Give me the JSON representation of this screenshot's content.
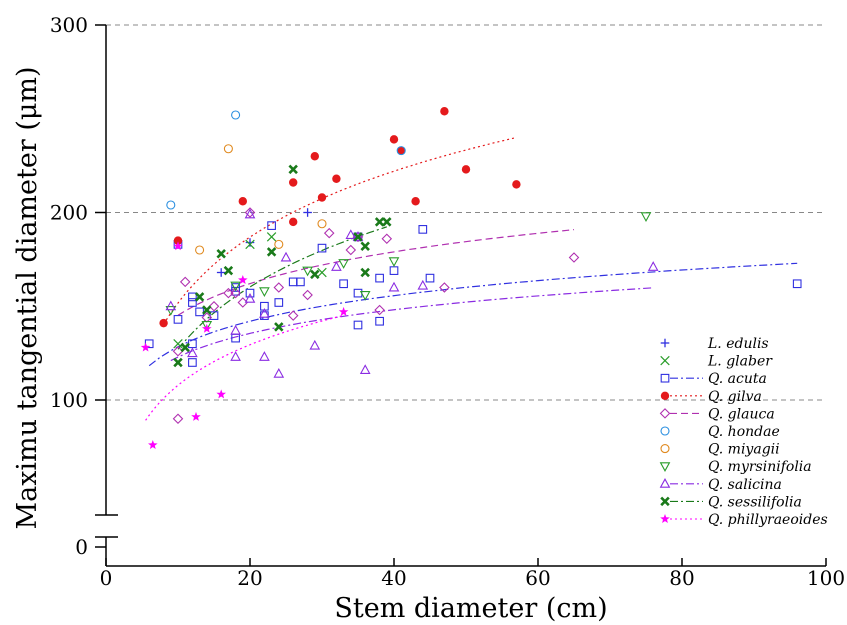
{
  "chart_data": {
    "type": "scatter",
    "title": "",
    "xlabel": "Stem diameter (cm)",
    "ylabel": "Maximu tangential diameter (μm)",
    "xlim": [
      0,
      100
    ],
    "ylim": [
      0,
      300
    ],
    "y_axis_break": [
      40,
      60
    ],
    "x_ticks": [
      0,
      20,
      40,
      60,
      80,
      100
    ],
    "x_tick_labels": [
      "0",
      "20",
      "40",
      "60",
      "80",
      "100"
    ],
    "y_ticks": [
      0,
      100,
      200,
      300
    ],
    "y_tick_labels": [
      "0",
      "100",
      "200",
      "300"
    ],
    "grid": "dashed horizontal lines at 100, 200, 300",
    "legend_position": "bottom-right",
    "series": [
      {
        "name": "L. edulis",
        "color": "#3030e0",
        "marker": "plus",
        "line": null,
        "points": [
          [
            16,
            168
          ],
          [
            20,
            184
          ],
          [
            28,
            200
          ]
        ]
      },
      {
        "name": "L. glaber",
        "color": "#2a9d2a",
        "marker": "x",
        "line": null,
        "points": [
          [
            10,
            130
          ],
          [
            20,
            183
          ],
          [
            23,
            187
          ],
          [
            30,
            168
          ]
        ]
      },
      {
        "name": "Q. acuta",
        "color": "#3030e0",
        "marker": "square-open",
        "line": "dashdot",
        "fit": {
          "a": 83.0,
          "b": 19.7
        },
        "points": [
          [
            6,
            130
          ],
          [
            10,
            143
          ],
          [
            10,
            183
          ],
          [
            12,
            120
          ],
          [
            12,
            130
          ],
          [
            12,
            152
          ],
          [
            12,
            155
          ],
          [
            13,
            147
          ],
          [
            15,
            145
          ],
          [
            18,
            133
          ],
          [
            18,
            158
          ],
          [
            18,
            160
          ],
          [
            20,
            157
          ],
          [
            22,
            145
          ],
          [
            22,
            150
          ],
          [
            23,
            193
          ],
          [
            24,
            152
          ],
          [
            26,
            163
          ],
          [
            27,
            163
          ],
          [
            30,
            181
          ],
          [
            33,
            162
          ],
          [
            35,
            140
          ],
          [
            35,
            157
          ],
          [
            35,
            187
          ],
          [
            38,
            142
          ],
          [
            38,
            165
          ],
          [
            40,
            169
          ],
          [
            44,
            191
          ],
          [
            45,
            165
          ],
          [
            96,
            162
          ]
        ]
      },
      {
        "name": "Q. gilva",
        "color": "#e41a1c",
        "marker": "circle-filled",
        "line": "dotted",
        "fit": {
          "a": 35.0,
          "b": 50.7
        },
        "points": [
          [
            8,
            141
          ],
          [
            10,
            185
          ],
          [
            19,
            206
          ],
          [
            26,
            216
          ],
          [
            26,
            195
          ],
          [
            29,
            230
          ],
          [
            30,
            208
          ],
          [
            32,
            218
          ],
          [
            40,
            239
          ],
          [
            41,
            233
          ],
          [
            43,
            206
          ],
          [
            47,
            254
          ],
          [
            50,
            223
          ],
          [
            57,
            215
          ]
        ]
      },
      {
        "name": "Q. glauca",
        "color": "#b030b0",
        "marker": "diamond-open",
        "line": "dashed",
        "fit": {
          "a": 89.0,
          "b": 24.4
        },
        "points": [
          [
            10,
            90
          ],
          [
            10,
            126
          ],
          [
            11,
            163
          ],
          [
            14,
            144
          ],
          [
            15,
            150
          ],
          [
            17,
            157
          ],
          [
            18,
            157
          ],
          [
            19,
            152
          ],
          [
            20,
            200
          ],
          [
            24,
            160
          ],
          [
            26,
            145
          ],
          [
            28,
            156
          ],
          [
            31,
            189
          ],
          [
            34,
            180
          ],
          [
            35,
            187
          ],
          [
            38,
            148
          ],
          [
            39,
            186
          ],
          [
            47,
            160
          ],
          [
            65,
            176
          ]
        ]
      },
      {
        "name": "Q. hondae",
        "color": "#2a8fe0",
        "marker": "circle-open",
        "line": null,
        "points": [
          [
            9,
            204
          ],
          [
            18,
            252
          ],
          [
            41,
            233
          ]
        ]
      },
      {
        "name": "Q. miyagii",
        "color": "#e08a20",
        "marker": "circle-open",
        "line": null,
        "points": [
          [
            13,
            180
          ],
          [
            17,
            234
          ],
          [
            24,
            183
          ],
          [
            30,
            194
          ]
        ]
      },
      {
        "name": "Q. myrsinifolia",
        "color": "#2a9d2a",
        "marker": "triangle-down-open",
        "line": null,
        "points": [
          [
            9,
            148
          ],
          [
            14,
            140
          ],
          [
            18,
            161
          ],
          [
            22,
            158
          ],
          [
            28,
            169
          ],
          [
            33,
            173
          ],
          [
            36,
            156
          ],
          [
            40,
            174
          ],
          [
            75,
            198
          ]
        ]
      },
      {
        "name": "Q. salicina",
        "color": "#8a2be2",
        "marker": "triangle-up-open",
        "line": "dashdot",
        "fit": {
          "a": 81.0,
          "b": 18.2
        },
        "points": [
          [
            9,
            150
          ],
          [
            12,
            125
          ],
          [
            18,
            123
          ],
          [
            18,
            137
          ],
          [
            20,
            154
          ],
          [
            20,
            199
          ],
          [
            22,
            123
          ],
          [
            22,
            146
          ],
          [
            24,
            114
          ],
          [
            25,
            176
          ],
          [
            29,
            129
          ],
          [
            32,
            171
          ],
          [
            34,
            188
          ],
          [
            35,
            187
          ],
          [
            36,
            116
          ],
          [
            40,
            160
          ],
          [
            44,
            161
          ],
          [
            76,
            171
          ]
        ]
      },
      {
        "name": "Q. sessilifolia",
        "color": "#1a7a1a",
        "marker": "x-bold",
        "line": "dashdot",
        "fit": {
          "a": 16.5,
          "b": 48.0
        },
        "points": [
          [
            10,
            120
          ],
          [
            11,
            128
          ],
          [
            13,
            155
          ],
          [
            14,
            148
          ],
          [
            16,
            178
          ],
          [
            17,
            169
          ],
          [
            23,
            179
          ],
          [
            24,
            139
          ],
          [
            26,
            223
          ],
          [
            29,
            167
          ],
          [
            35,
            187
          ],
          [
            36,
            182
          ],
          [
            36,
            168
          ],
          [
            38,
            195
          ],
          [
            39,
            195
          ]
        ]
      },
      {
        "name": "Q. phillyraeoides",
        "color": "#ff00ff",
        "marker": "star",
        "line": "dotted",
        "fit": {
          "a": 36.0,
          "b": 31.2
        },
        "points": [
          [
            5.5,
            128
          ],
          [
            6.5,
            76
          ],
          [
            10,
            182
          ],
          [
            12.5,
            91
          ],
          [
            14,
            138
          ],
          [
            16,
            103
          ],
          [
            19,
            164
          ],
          [
            33,
            147
          ]
        ]
      }
    ]
  }
}
